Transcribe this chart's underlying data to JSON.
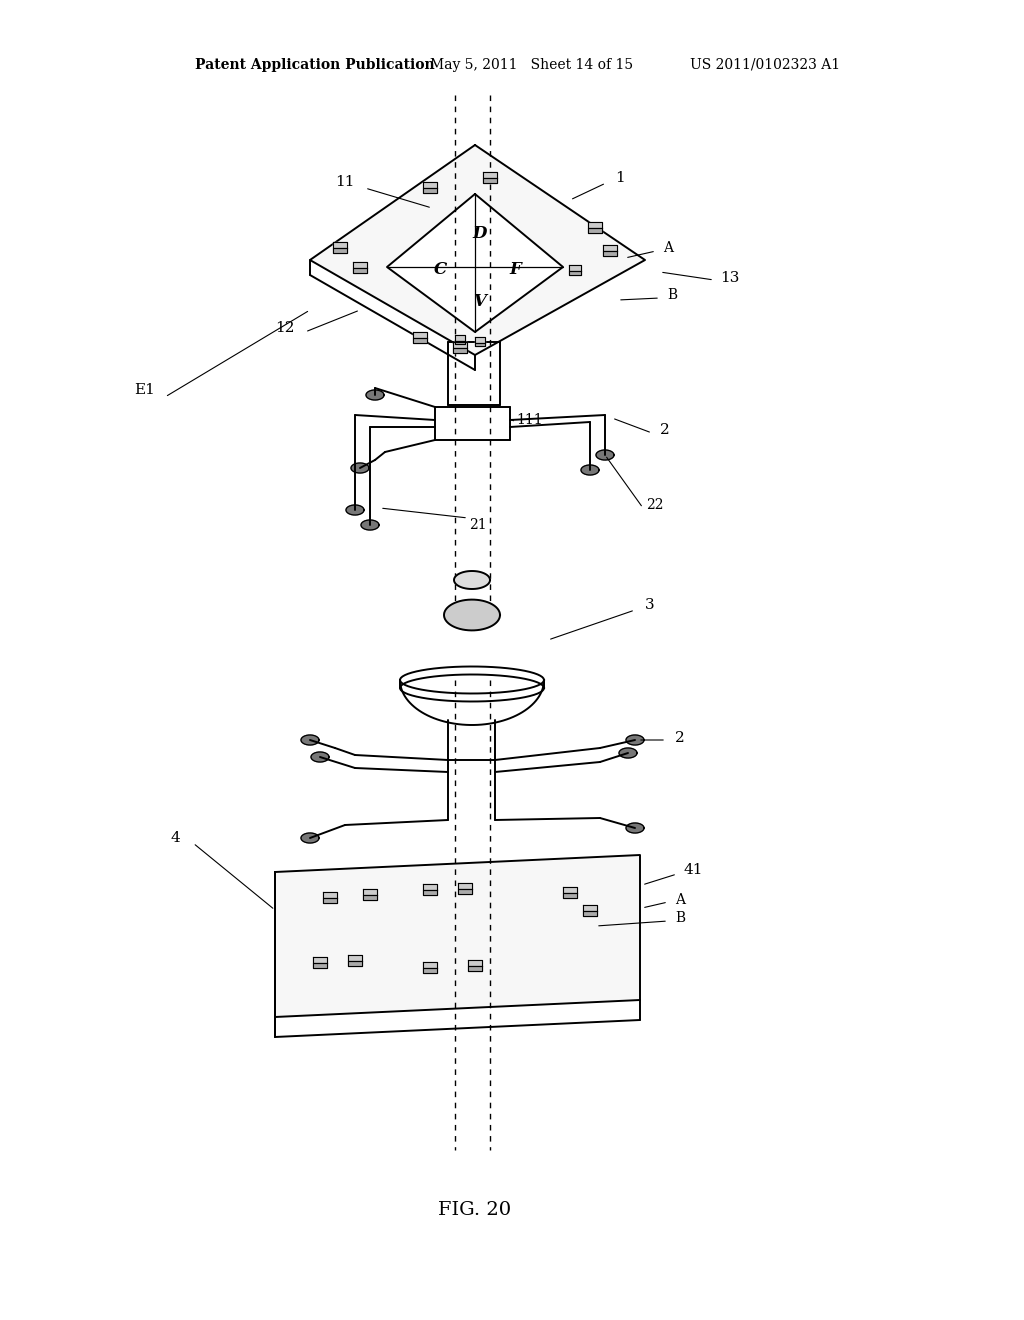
{
  "title": "FIG. 20",
  "header_left": "Patent Application Publication",
  "header_mid": "May 5, 2011   Sheet 14 of 15",
  "header_right": "US 2011/0102323 A1",
  "background": "#ffffff",
  "figsize": [
    10.24,
    13.2
  ],
  "dpi": 100
}
